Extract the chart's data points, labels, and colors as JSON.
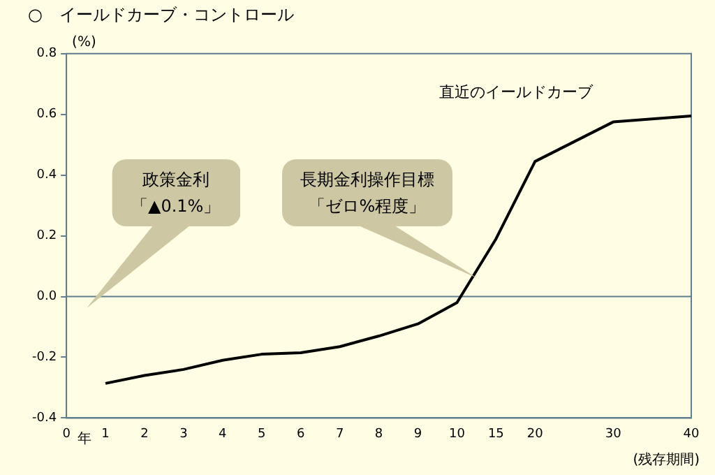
{
  "chart_data": {
    "type": "line",
    "title": "○　イールドカーブ・コントロール",
    "ylabel": "(%)",
    "xlabel": "(残存期間)",
    "categories": [
      "0",
      "1",
      "2",
      "3",
      "4",
      "5",
      "6",
      "7",
      "8",
      "9",
      "10",
      "15",
      "20",
      null,
      "30",
      null,
      "40"
    ],
    "series": [
      {
        "name": "直近のイールドカーブ",
        "color": "#000000",
        "values": [
          null,
          -0.286,
          -0.26,
          -0.24,
          -0.21,
          -0.19,
          -0.185,
          -0.165,
          -0.13,
          -0.09,
          -0.02,
          0.19,
          0.445,
          null,
          0.575,
          null,
          0.595
        ]
      }
    ],
    "ylim": [
      -0.4,
      0.8
    ],
    "yticks": [
      {
        "value": -0.4,
        "label": "-0.4"
      },
      {
        "value": -0.2,
        "label": "-0.2"
      },
      {
        "value": 0,
        "label": "0.0"
      },
      {
        "value": 0.2,
        "label": "0.2"
      },
      {
        "value": 0.4,
        "label": "0.4"
      },
      {
        "value": 0.6,
        "label": "0.6"
      },
      {
        "value": 0.8,
        "label": "0.8"
      }
    ],
    "ref_lines": [
      {
        "axis": "y",
        "value": 0,
        "color": "#5f7f8f"
      }
    ],
    "annotations": [
      "年",
      "政策金利",
      "「▲0.1%」",
      "長期金利操作目標",
      "「ゼロ%程度」"
    ],
    "grid": false,
    "legend": false,
    "marker": "none",
    "line_style": "solid"
  }
}
